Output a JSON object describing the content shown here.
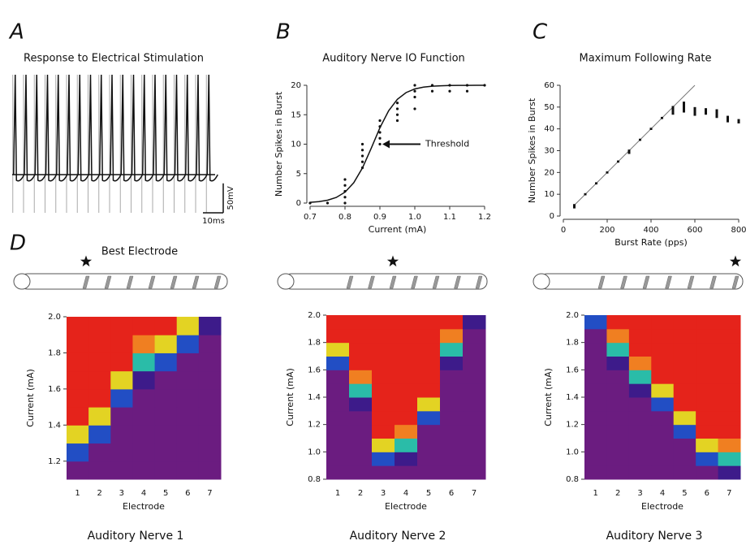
{
  "panel_labels": [
    "A",
    "B",
    "C",
    "D"
  ],
  "chart_data": [
    {
      "type": "trace",
      "title": "Response to Electrical Stimulation",
      "xlim": [
        0,
        100
      ],
      "ylim": [
        -100,
        100
      ],
      "spike_times": [
        1.5,
        6.8,
        12.1,
        17.4,
        22.7,
        28,
        33.3,
        38.6,
        43.9,
        49.2,
        54.5,
        59.8,
        65.1,
        70.4,
        75.7,
        81,
        86.3,
        91.6,
        96.9
      ],
      "scale_bar_x": {
        "value": 10,
        "label": "10ms"
      },
      "scale_bar_y": {
        "value": 50,
        "label": "50mV"
      }
    },
    {
      "type": "scatter_fit",
      "title": "Auditory Nerve IO Function",
      "x_label": "Current (mA)",
      "y_label": "Number Spikes in Burst",
      "xlim": [
        0.7,
        1.2
      ],
      "xticks": [
        0.7,
        0.8,
        0.9,
        {
          "value": 1,
          "label": "1.0"
        },
        1.1,
        1.2
      ],
      "ylim": [
        0,
        20
      ],
      "yticks": [
        0,
        5,
        10,
        15,
        20
      ],
      "x": [
        0.7,
        0.75,
        0.8,
        0.8,
        0.8,
        0.8,
        0.8,
        0.85,
        0.85,
        0.85,
        0.85,
        0.85,
        0.9,
        0.9,
        0.9,
        0.9,
        0.9,
        0.95,
        0.95,
        0.95,
        0.95,
        1,
        1,
        1,
        1,
        1.05,
        1.05,
        1.1,
        1.1,
        1.15,
        1.15,
        1.2
      ],
      "values": [
        0,
        0,
        0,
        1,
        2,
        3,
        4,
        6,
        7,
        8,
        9,
        10,
        10,
        11,
        12,
        13,
        14,
        14,
        15,
        16,
        17,
        16,
        18,
        19,
        20,
        19,
        20,
        19,
        20,
        19,
        20,
        20
      ],
      "fit": {
        "x": [
          0.7,
          0.725,
          0.75,
          0.775,
          0.8,
          0.825,
          0.85,
          0.875,
          0.9,
          0.925,
          0.95,
          0.975,
          1,
          1.025,
          1.05,
          1.075,
          1.1,
          1.125,
          1.15,
          1.175,
          1.2
        ],
        "values": [
          0.12,
          0.24,
          0.48,
          0.95,
          1.85,
          3.45,
          5.96,
          9.29,
          12.78,
          15.67,
          17.62,
          18.76,
          19.38,
          19.69,
          19.85,
          19.92,
          19.96,
          19.98,
          19.99,
          20,
          20
        ]
      },
      "annotation": {
        "text": "Threshold",
        "x": 0.9,
        "y": 10
      }
    },
    {
      "type": "error_bars",
      "title": "Maximum Following Rate",
      "x_label": "Burst Rate (pps)",
      "y_label": "Number Spikes  in Burst",
      "xlim": [
        0,
        800
      ],
      "xticks": [
        0,
        200,
        400,
        600,
        800
      ],
      "ylim": [
        0,
        60
      ],
      "yticks": [
        0,
        10,
        20,
        30,
        40,
        50,
        60
      ],
      "x": [
        50,
        100,
        150,
        200,
        250,
        300,
        350,
        400,
        450,
        500,
        550,
        600,
        650,
        700,
        750,
        800
      ],
      "values": [
        4.5,
        10,
        15,
        20,
        25,
        29.5,
        35,
        40,
        45,
        48.5,
        50,
        48,
        48,
        47,
        44.5,
        43.5
      ],
      "errors": [
        1,
        0.5,
        0.5,
        0.5,
        0.5,
        1,
        0.5,
        0.5,
        0.5,
        2,
        2.5,
        2,
        1.5,
        2,
        1.5,
        1
      ],
      "reference": {
        "x": [
          50,
          600
        ],
        "values": [
          5,
          60
        ]
      }
    },
    {
      "type": "heatmap",
      "title": "Auditory Nerve 1",
      "x_label": "Electrode",
      "y_label": "Current (mA)",
      "best_electrode_label": "Best Electrode",
      "best_electrode": 1,
      "categories": [
        "1",
        "2",
        "3",
        "4",
        "5",
        "6",
        "7"
      ],
      "y": [
        1.1,
        1.2,
        1.3,
        1.4,
        1.5,
        1.6,
        1.7,
        1.8,
        1.9
      ],
      "ylim": [
        1.1,
        2.0
      ],
      "yticks": [
        1.2,
        1.4,
        1.6,
        1.8,
        {
          "value": 2,
          "label": "2.0"
        }
      ],
      "zlim": [
        0,
        20
      ],
      "colors": [
        "#6b1c80",
        "#2a1b8e",
        "#1f5fd6",
        "#25b4e6",
        "#2ec46a",
        "#dde223",
        "#f5a623",
        "#e5231b"
      ],
      "values": [
        [
          0,
          0,
          0,
          0,
          0,
          0,
          0
        ],
        [
          5,
          0,
          0,
          0,
          0,
          0,
          0
        ],
        [
          15,
          5,
          0,
          0,
          0,
          0,
          0
        ],
        [
          20,
          15,
          0,
          0,
          0,
          0,
          0
        ],
        [
          20,
          20,
          5,
          0,
          0,
          0,
          0
        ],
        [
          20,
          20,
          15,
          2,
          0,
          0,
          0
        ],
        [
          20,
          20,
          20,
          10,
          5,
          0,
          0
        ],
        [
          20,
          20,
          20,
          18,
          15,
          5,
          0
        ],
        [
          20,
          20,
          20,
          20,
          20,
          15,
          2
        ]
      ]
    },
    {
      "type": "heatmap",
      "title": "Auditory Nerve 2",
      "x_label": "Electrode",
      "y_label": "Current (mA)",
      "best_electrode": 3,
      "categories": [
        "1",
        "2",
        "3",
        "4",
        "5",
        "6",
        "7"
      ],
      "y": [
        0.8,
        0.9,
        1.0,
        1.1,
        1.2,
        1.3,
        1.4,
        1.5,
        1.6,
        1.7,
        1.8,
        1.9
      ],
      "ylim": [
        0.8,
        2.0
      ],
      "yticks": [
        0.8,
        {
          "value": 1,
          "label": "1.0"
        },
        1.2,
        1.4,
        1.6,
        1.8,
        {
          "value": 2,
          "label": "2.0"
        }
      ],
      "zlim": [
        0,
        20
      ],
      "colors": [
        "#6b1c80",
        "#2a1b8e",
        "#1f5fd6",
        "#25b4e6",
        "#2ec46a",
        "#dde223",
        "#f5a623",
        "#e5231b"
      ],
      "values": [
        [
          0,
          0,
          0,
          0,
          0,
          0,
          0
        ],
        [
          0,
          0,
          5,
          2,
          0,
          0,
          0
        ],
        [
          0,
          0,
          15,
          10,
          0,
          0,
          0
        ],
        [
          0,
          0,
          20,
          18,
          0,
          0,
          0
        ],
        [
          0,
          0,
          20,
          20,
          5,
          0,
          0
        ],
        [
          0,
          2,
          20,
          20,
          15,
          0,
          0
        ],
        [
          0,
          10,
          20,
          20,
          20,
          0,
          0
        ],
        [
          0,
          18,
          20,
          20,
          20,
          0,
          0
        ],
        [
          5,
          20,
          20,
          20,
          20,
          2,
          0
        ],
        [
          15,
          20,
          20,
          20,
          20,
          10,
          0
        ],
        [
          20,
          20,
          20,
          20,
          20,
          18,
          0
        ],
        [
          20,
          20,
          20,
          20,
          20,
          20,
          2
        ]
      ]
    },
    {
      "type": "heatmap",
      "title": "Auditory Nerve 3",
      "x_label": "Electrode",
      "y_label": "Current (mA)",
      "best_electrode": 7,
      "categories": [
        "1",
        "2",
        "3",
        "4",
        "5",
        "6",
        "7"
      ],
      "y": [
        0.8,
        0.9,
        1.0,
        1.1,
        1.2,
        1.3,
        1.4,
        1.5,
        1.6,
        1.7,
        1.8,
        1.9
      ],
      "ylim": [
        0.8,
        2.0
      ],
      "yticks": [
        0.8,
        {
          "value": 1,
          "label": "1.0"
        },
        1.2,
        1.4,
        1.6,
        1.8,
        {
          "value": 2,
          "label": "2.0"
        }
      ],
      "zlim": [
        0,
        20
      ],
      "colors": [
        "#6b1c80",
        "#2a1b8e",
        "#1f5fd6",
        "#25b4e6",
        "#2ec46a",
        "#dde223",
        "#f5a623",
        "#e5231b"
      ],
      "values": [
        [
          0,
          0,
          0,
          0,
          0,
          0,
          2
        ],
        [
          0,
          0,
          0,
          0,
          0,
          5,
          10
        ],
        [
          0,
          0,
          0,
          0,
          0,
          15,
          18
        ],
        [
          0,
          0,
          0,
          0,
          5,
          20,
          20
        ],
        [
          0,
          0,
          0,
          0,
          15,
          20,
          20
        ],
        [
          0,
          0,
          0,
          5,
          20,
          20,
          20
        ],
        [
          0,
          0,
          2,
          15,
          20,
          20,
          20
        ],
        [
          0,
          0,
          10,
          20,
          20,
          20,
          20
        ],
        [
          0,
          2,
          18,
          20,
          20,
          20,
          20
        ],
        [
          0,
          10,
          20,
          20,
          20,
          20,
          20
        ],
        [
          0,
          18,
          20,
          20,
          20,
          20,
          20
        ],
        [
          5,
          20,
          20,
          20,
          20,
          20,
          20
        ]
      ]
    }
  ]
}
